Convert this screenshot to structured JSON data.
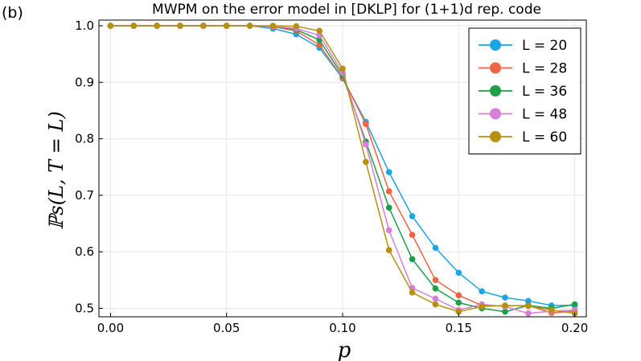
{
  "panel_label": "(b)",
  "chart_data": {
    "type": "line",
    "title": "MWPM on the error model in [DKLP] for (1+1)d rep. code",
    "xlabel": "p",
    "ylabel": "ℙs(L, T = L)",
    "xlim": [
      -0.005,
      0.205
    ],
    "ylim": [
      0.485,
      1.01
    ],
    "xticks": [
      0.0,
      0.05,
      0.1,
      0.15,
      0.2
    ],
    "xtick_labels": [
      "0.00",
      "0.05",
      "0.10",
      "0.15",
      "0.20"
    ],
    "yticks": [
      0.5,
      0.6,
      0.7,
      0.8,
      0.9,
      1.0
    ],
    "ytick_labels": [
      "0.5",
      "0.6",
      "0.7",
      "0.8",
      "0.9",
      "1.0"
    ],
    "grid": true,
    "legend_position": "top-right",
    "x": [
      0.0,
      0.01,
      0.02,
      0.03,
      0.04,
      0.05,
      0.06,
      0.07,
      0.08,
      0.09,
      0.1,
      0.11,
      0.12,
      0.13,
      0.14,
      0.15,
      0.16,
      0.17,
      0.18,
      0.19,
      0.2
    ],
    "series": [
      {
        "name": "L = 20",
        "color": "#1aa5e6",
        "values": [
          1.0,
          1.0,
          1.0,
          1.0,
          1.0,
          1.0,
          1.0,
          0.995,
          0.985,
          0.961,
          0.907,
          0.83,
          0.741,
          0.663,
          0.607,
          0.563,
          0.53,
          0.519,
          0.513,
          0.505,
          0.505
        ]
      },
      {
        "name": "L = 28",
        "color": "#ee6444",
        "values": [
          1.0,
          1.0,
          1.0,
          1.0,
          1.0,
          1.0,
          1.0,
          0.998,
          0.991,
          0.966,
          0.908,
          0.826,
          0.707,
          0.63,
          0.55,
          0.523,
          0.505,
          0.504,
          0.505,
          0.492,
          0.495
        ]
      },
      {
        "name": "L = 36",
        "color": "#1f9e4a",
        "values": [
          1.0,
          1.0,
          1.0,
          1.0,
          1.0,
          1.0,
          1.0,
          0.999,
          0.993,
          0.975,
          0.912,
          0.795,
          0.678,
          0.587,
          0.535,
          0.51,
          0.5,
          0.494,
          0.505,
          0.5,
          0.507
        ]
      },
      {
        "name": "L = 48",
        "color": "#d57fd8",
        "values": [
          1.0,
          1.0,
          1.0,
          1.0,
          1.0,
          1.0,
          1.0,
          0.999,
          0.995,
          0.983,
          0.917,
          0.79,
          0.638,
          0.536,
          0.517,
          0.497,
          0.507,
          0.503,
          0.491,
          0.495,
          0.497
        ]
      },
      {
        "name": "L = 60",
        "color": "#b8900f",
        "values": [
          1.0,
          1.0,
          1.0,
          1.0,
          1.0,
          1.0,
          1.0,
          1.0,
          0.999,
          0.991,
          0.924,
          0.759,
          0.603,
          0.528,
          0.507,
          0.494,
          0.503,
          0.505,
          0.504,
          0.497,
          0.491
        ]
      }
    ]
  }
}
